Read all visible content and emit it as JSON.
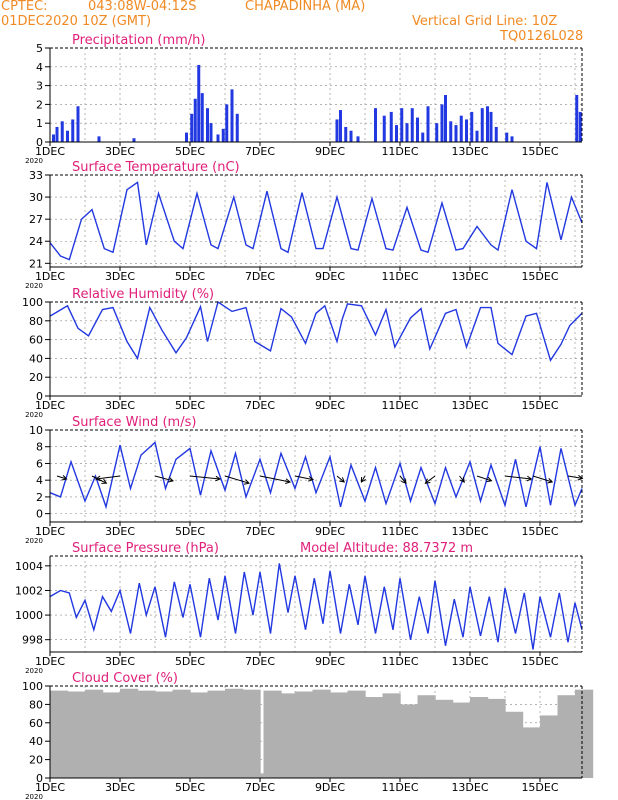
{
  "header": {
    "source": "CPTEC:",
    "coords": "043:08W-04:12S",
    "station": "CHAPADINHA (MA)",
    "init_time": "01DEC2020 10Z (GMT)",
    "grid_note": "Vertical Grid Line: 10Z",
    "model_code": "TQ0126L028"
  },
  "colors": {
    "header": "#f08a24",
    "title": "#e0207a",
    "line": "#2238e0",
    "cloud": "#b0b0b0",
    "grid": "#888888"
  },
  "x_axis": {
    "ticks": [
      "1DEC",
      "3DEC",
      "5DEC",
      "7DEC",
      "9DEC",
      "11DEC",
      "13DEC",
      "15DEC"
    ],
    "tick_days": [
      0,
      2,
      4,
      6,
      8,
      10,
      12,
      14
    ],
    "day_range": [
      0,
      15.2
    ],
    "year_label": "2020"
  },
  "chart_data": [
    {
      "type": "bar",
      "title": "Precipitation (mm/h)",
      "ylim": [
        0,
        5
      ],
      "yticks": [
        0,
        1,
        2,
        3,
        4,
        5
      ],
      "x_day": [
        0.1,
        0.2,
        0.35,
        0.5,
        0.65,
        0.8,
        1.4,
        2.4,
        3.9,
        4.05,
        4.15,
        4.25,
        4.35,
        4.5,
        4.6,
        4.8,
        4.95,
        5.05,
        5.2,
        5.35,
        8.2,
        8.3,
        8.45,
        8.6,
        8.8,
        9.3,
        9.55,
        9.75,
        9.9,
        10.05,
        10.2,
        10.35,
        10.5,
        10.65,
        10.8,
        11.05,
        11.2,
        11.3,
        11.45,
        11.6,
        11.75,
        11.9,
        12.05,
        12.2,
        12.35,
        12.5,
        12.6,
        12.75,
        13.05,
        13.2,
        15.05,
        15.15
      ],
      "values": [
        0.4,
        0.8,
        1.1,
        0.6,
        1.2,
        1.9,
        0.3,
        0.2,
        0.5,
        1.5,
        2.3,
        4.1,
        2.6,
        1.8,
        1.0,
        0.4,
        0.7,
        2.0,
        2.8,
        1.5,
        1.2,
        1.7,
        0.8,
        0.6,
        0.3,
        1.8,
        1.4,
        1.6,
        0.9,
        1.8,
        1.0,
        1.8,
        1.3,
        0.5,
        1.9,
        1.0,
        2.0,
        2.5,
        1.1,
        0.9,
        1.4,
        1.2,
        1.6,
        0.6,
        1.8,
        1.9,
        1.6,
        0.8,
        0.5,
        0.3,
        2.5,
        1.6
      ]
    },
    {
      "type": "line",
      "title": "Surface Temperature (nC)",
      "ylim": [
        20.5,
        33
      ],
      "yticks": [
        21,
        24,
        27,
        30,
        33
      ],
      "x_day": [
        0,
        0.3,
        0.55,
        0.9,
        1.2,
        1.55,
        1.8,
        2.2,
        2.5,
        2.75,
        3.1,
        3.55,
        3.8,
        4.2,
        4.6,
        4.8,
        5.25,
        5.6,
        5.8,
        6.2,
        6.6,
        6.8,
        7.2,
        7.6,
        7.8,
        8.2,
        8.6,
        8.8,
        9.2,
        9.6,
        9.8,
        10.2,
        10.6,
        10.8,
        11.2,
        11.6,
        11.8,
        12.2,
        12.6,
        12.8,
        13.2,
        13.6,
        13.9,
        14.2,
        14.6,
        14.9,
        15.2
      ],
      "values": [
        23.8,
        22.0,
        21.5,
        27.0,
        28.3,
        23.0,
        22.5,
        31.0,
        32.0,
        23.5,
        30.5,
        24.0,
        23.0,
        30.5,
        23.5,
        23.0,
        30.0,
        23.5,
        23.0,
        30.8,
        23.0,
        22.5,
        30.6,
        23.0,
        23.0,
        30.0,
        23.0,
        22.8,
        29.8,
        23.0,
        22.8,
        28.6,
        22.8,
        22.5,
        29.2,
        22.8,
        23.0,
        26.0,
        23.5,
        22.8,
        31.0,
        24.0,
        23.0,
        32.0,
        24.2,
        30.0,
        26.5
      ]
    },
    {
      "type": "line",
      "title": "Relative Humidity (%)",
      "ylim": [
        0,
        100
      ],
      "yticks": [
        0,
        20,
        40,
        60,
        80,
        100
      ],
      "x_day": [
        0,
        0.5,
        0.8,
        1.1,
        1.5,
        1.8,
        2.2,
        2.5,
        2.85,
        3.2,
        3.6,
        3.9,
        4.3,
        4.5,
        4.8,
        5.2,
        5.6,
        5.85,
        6.3,
        6.6,
        6.9,
        7.3,
        7.6,
        7.85,
        8.2,
        8.35,
        8.5,
        8.9,
        9.3,
        9.6,
        9.85,
        10.3,
        10.6,
        10.85,
        11.3,
        11.6,
        11.9,
        12.3,
        12.6,
        12.8,
        13.2,
        13.6,
        13.9,
        14.3,
        14.6,
        14.85,
        15.2
      ],
      "values": [
        85,
        96,
        72,
        64,
        92,
        94,
        58,
        40,
        94,
        70,
        46,
        62,
        95,
        58,
        100,
        90,
        94,
        58,
        48,
        93,
        84,
        56,
        88,
        96,
        58,
        82,
        98,
        96,
        65,
        92,
        52,
        83,
        93,
        50,
        88,
        92,
        52,
        94,
        94,
        56,
        44,
        85,
        88,
        38,
        55,
        75,
        88
      ]
    },
    {
      "type": "line",
      "title": "Surface Wind (m/s)",
      "ylim": [
        -1,
        10
      ],
      "yticks": [
        0,
        2,
        4,
        6,
        8,
        10
      ],
      "x_day": [
        0,
        0.3,
        0.6,
        1.0,
        1.3,
        1.6,
        2.0,
        2.3,
        2.6,
        3.0,
        3.3,
        3.6,
        4.0,
        4.3,
        4.6,
        5.0,
        5.3,
        5.6,
        6.0,
        6.3,
        6.6,
        7.0,
        7.3,
        7.6,
        8.0,
        8.3,
        8.6,
        9.0,
        9.3,
        9.6,
        10.0,
        10.3,
        10.6,
        11.0,
        11.3,
        11.6,
        12.0,
        12.3,
        12.6,
        13.0,
        13.3,
        13.6,
        14.0,
        14.3,
        14.6,
        15.0,
        15.2
      ],
      "values": [
        2.5,
        2.0,
        6.2,
        1.5,
        4.5,
        0.8,
        8.2,
        3.0,
        7.0,
        8.5,
        3.0,
        6.5,
        7.8,
        2.2,
        7.5,
        2.8,
        7.2,
        2.0,
        6.5,
        2.5,
        7.2,
        3.0,
        6.8,
        2.5,
        6.8,
        0.8,
        5.8,
        1.5,
        5.5,
        1.2,
        6.0,
        1.5,
        5.5,
        1.2,
        5.5,
        2.0,
        6.2,
        1.5,
        5.8,
        1.0,
        6.5,
        0.8,
        8.0,
        1.0,
        7.8,
        1.0,
        3.0
      ],
      "arrow_day": [
        0.2,
        1.2,
        2.0,
        3.0,
        4.0,
        5.0,
        6.0,
        7.0,
        8.2,
        9.0,
        10.0,
        11.0,
        11.7,
        12.2,
        13.0,
        13.8,
        14.8
      ],
      "arrow_u": [
        0.8,
        1.2,
        -2.0,
        1.5,
        2.5,
        2.0,
        2.5,
        1.5,
        0.6,
        -0.3,
        0.5,
        -0.8,
        0.4,
        1.2,
        2.2,
        1.6,
        1.2
      ],
      "arrow_v": [
        -0.5,
        -1.2,
        -0.5,
        -0.8,
        -0.5,
        -1.2,
        -1.0,
        -0.6,
        -1.0,
        -1.0,
        -1.2,
        -1.2,
        -1.0,
        -0.8,
        -0.5,
        -1.0,
        -0.4
      ]
    },
    {
      "type": "line",
      "title": "Surface Pressure (hPa)",
      "altitude": "Model Altitude: 88.7372 m",
      "ylim": [
        997,
        1004.8
      ],
      "yticks": [
        998,
        1000,
        1002,
        1004
      ],
      "x_day": [
        0,
        0.3,
        0.55,
        0.75,
        1.0,
        1.25,
        1.5,
        1.75,
        2.0,
        2.3,
        2.55,
        2.75,
        3.0,
        3.3,
        3.55,
        3.8,
        4.0,
        4.3,
        4.55,
        4.8,
        5.0,
        5.3,
        5.55,
        5.8,
        6.0,
        6.3,
        6.55,
        6.8,
        7.0,
        7.3,
        7.55,
        7.8,
        8.0,
        8.3,
        8.55,
        8.8,
        9.0,
        9.3,
        9.55,
        9.8,
        10.0,
        10.3,
        10.55,
        10.8,
        11.0,
        11.3,
        11.55,
        11.8,
        12.0,
        12.3,
        12.55,
        12.8,
        13.0,
        13.3,
        13.55,
        13.8,
        14.0,
        14.3,
        14.55,
        14.8,
        15.0,
        15.2
      ],
      "values": [
        1001.5,
        1002.0,
        1001.8,
        999.8,
        1001.2,
        998.8,
        1001.5,
        1000.3,
        1002.0,
        998.5,
        1002.6,
        1000.0,
        1002.3,
        998.2,
        1002.7,
        999.8,
        1002.5,
        998.2,
        1003.0,
        999.6,
        1003.2,
        998.5,
        1003.5,
        1000.0,
        1003.5,
        998.5,
        1004.2,
        1000.2,
        1003.2,
        998.8,
        1003.0,
        999.3,
        1003.6,
        998.5,
        1002.5,
        999.2,
        1003.2,
        998.5,
        1002.3,
        998.8,
        1003.0,
        998.0,
        1001.5,
        998.5,
        1002.8,
        997.5,
        1001.3,
        998.2,
        1002.3,
        998.3,
        1001.5,
        997.8,
        1002.2,
        998.5,
        1001.8,
        997.2,
        1001.5,
        998.2,
        1001.8,
        997.8,
        1001.0,
        998.8
      ]
    },
    {
      "type": "bar",
      "title": "Cloud Cover (%)",
      "ylim": [
        0,
        100
      ],
      "yticks": [
        0,
        20,
        40,
        60,
        80,
        100
      ],
      "x_day": [
        0.0,
        0.5,
        1.0,
        1.5,
        2.0,
        2.5,
        3.0,
        3.5,
        4.0,
        4.5,
        5.0,
        5.5,
        6.0,
        6.1,
        6.6,
        7.0,
        7.5,
        8.0,
        8.5,
        9.0,
        9.5,
        10.0,
        10.5,
        11.0,
        11.5,
        12.0,
        12.5,
        13.0,
        13.5,
        14.0,
        14.5,
        15.0
      ],
      "values": [
        95,
        94,
        96,
        93,
        97,
        95,
        94,
        96,
        93,
        95,
        97,
        96,
        5,
        95,
        92,
        94,
        96,
        93,
        95,
        88,
        92,
        80,
        90,
        85,
        82,
        88,
        86,
        72,
        55,
        68,
        90,
        96
      ]
    }
  ]
}
